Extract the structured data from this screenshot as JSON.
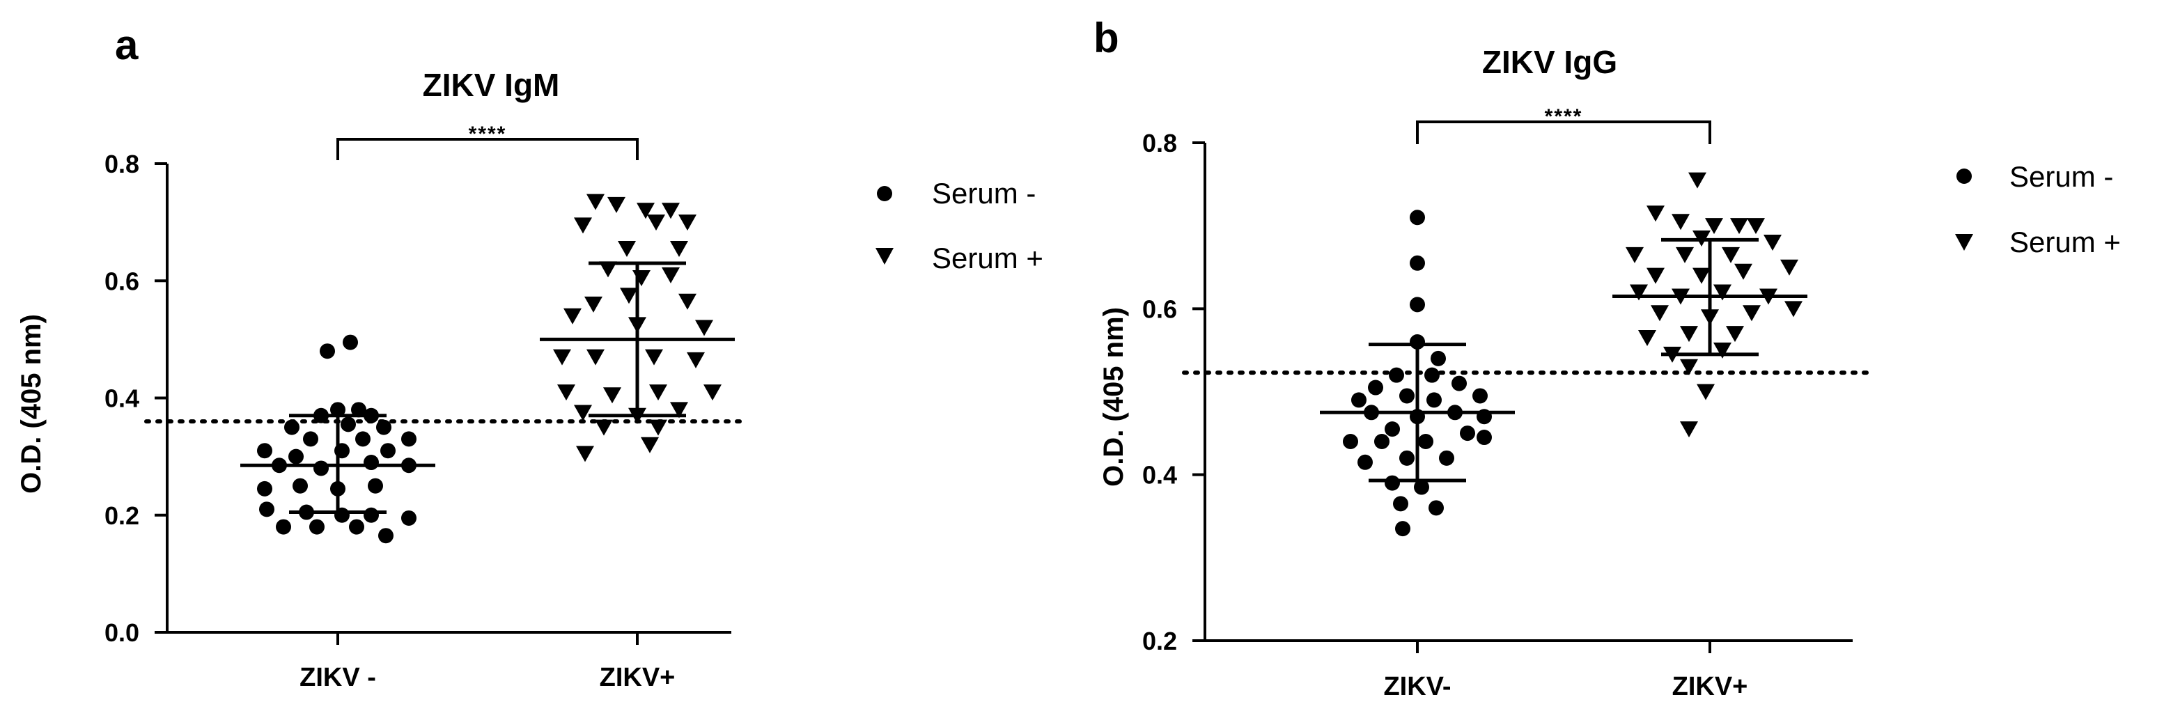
{
  "chart_data": [
    {
      "panel": "a",
      "type": "scatter",
      "title": "ZIKV IgM",
      "ylabel": "O.D. (405 nm)",
      "xlabel": "",
      "categories": [
        "ZIKV -",
        "ZIKV+"
      ],
      "ylim": [
        0.0,
        0.8
      ],
      "yticks": [
        "0.0",
        "0.2",
        "0.4",
        "0.6",
        "0.8"
      ],
      "cutoff": 0.36,
      "significance": "****",
      "legend": {
        "position": "right",
        "entries": [
          "Serum -",
          "Serum +"
        ]
      },
      "series": [
        {
          "name": "Serum -",
          "marker": "circle",
          "category": "ZIKV -",
          "mean": 0.285,
          "sd_low": 0.205,
          "sd_high": 0.37,
          "points": [
            {
              "dx": -0.05,
              "y": 0.48
            },
            {
              "dx": 0.06,
              "y": 0.495
            },
            {
              "dx": 0.0,
              "y": 0.38
            },
            {
              "dx": -0.08,
              "y": 0.37
            },
            {
              "dx": 0.1,
              "y": 0.38
            },
            {
              "dx": 0.16,
              "y": 0.37
            },
            {
              "dx": -0.22,
              "y": 0.35
            },
            {
              "dx": 0.05,
              "y": 0.355
            },
            {
              "dx": 0.22,
              "y": 0.35
            },
            {
              "dx": -0.13,
              "y": 0.33
            },
            {
              "dx": 0.12,
              "y": 0.33
            },
            {
              "dx": 0.34,
              "y": 0.33
            },
            {
              "dx": -0.35,
              "y": 0.31
            },
            {
              "dx": -0.2,
              "y": 0.3
            },
            {
              "dx": 0.02,
              "y": 0.31
            },
            {
              "dx": 0.24,
              "y": 0.31
            },
            {
              "dx": -0.28,
              "y": 0.285
            },
            {
              "dx": -0.08,
              "y": 0.28
            },
            {
              "dx": 0.16,
              "y": 0.29
            },
            {
              "dx": 0.34,
              "y": 0.285
            },
            {
              "dx": -0.35,
              "y": 0.245
            },
            {
              "dx": -0.18,
              "y": 0.25
            },
            {
              "dx": 0.0,
              "y": 0.245
            },
            {
              "dx": 0.18,
              "y": 0.25
            },
            {
              "dx": -0.34,
              "y": 0.21
            },
            {
              "dx": -0.15,
              "y": 0.205
            },
            {
              "dx": 0.02,
              "y": 0.2
            },
            {
              "dx": 0.16,
              "y": 0.2
            },
            {
              "dx": 0.34,
              "y": 0.195
            },
            {
              "dx": -0.26,
              "y": 0.18
            },
            {
              "dx": -0.1,
              "y": 0.18
            },
            {
              "dx": 0.09,
              "y": 0.18
            },
            {
              "dx": 0.23,
              "y": 0.165
            }
          ]
        },
        {
          "name": "Serum +",
          "marker": "triangle-down",
          "category": "ZIKV+",
          "mean": 0.5,
          "sd_low": 0.37,
          "sd_high": 0.63,
          "points": [
            {
              "dx": -0.2,
              "y": 0.735
            },
            {
              "dx": -0.1,
              "y": 0.73
            },
            {
              "dx": 0.04,
              "y": 0.72
            },
            {
              "dx": 0.16,
              "y": 0.72
            },
            {
              "dx": -0.26,
              "y": 0.695
            },
            {
              "dx": 0.09,
              "y": 0.7
            },
            {
              "dx": 0.24,
              "y": 0.7
            },
            {
              "dx": -0.05,
              "y": 0.655
            },
            {
              "dx": 0.2,
              "y": 0.655
            },
            {
              "dx": -0.14,
              "y": 0.62
            },
            {
              "dx": 0.02,
              "y": 0.605
            },
            {
              "dx": 0.16,
              "y": 0.61
            },
            {
              "dx": -0.21,
              "y": 0.56
            },
            {
              "dx": -0.04,
              "y": 0.575
            },
            {
              "dx": 0.24,
              "y": 0.565
            },
            {
              "dx": -0.31,
              "y": 0.54
            },
            {
              "dx": 0.0,
              "y": 0.525
            },
            {
              "dx": 0.32,
              "y": 0.52
            },
            {
              "dx": -0.36,
              "y": 0.47
            },
            {
              "dx": -0.2,
              "y": 0.47
            },
            {
              "dx": 0.08,
              "y": 0.47
            },
            {
              "dx": 0.28,
              "y": 0.465
            },
            {
              "dx": -0.34,
              "y": 0.41
            },
            {
              "dx": -0.12,
              "y": 0.405
            },
            {
              "dx": 0.1,
              "y": 0.41
            },
            {
              "dx": 0.36,
              "y": 0.41
            },
            {
              "dx": -0.26,
              "y": 0.375
            },
            {
              "dx": 0.0,
              "y": 0.37
            },
            {
              "dx": 0.2,
              "y": 0.38
            },
            {
              "dx": -0.16,
              "y": 0.35
            },
            {
              "dx": 0.1,
              "y": 0.35
            },
            {
              "dx": -0.25,
              "y": 0.305
            },
            {
              "dx": 0.06,
              "y": 0.32
            }
          ]
        }
      ]
    },
    {
      "panel": "b",
      "type": "scatter",
      "title": "ZIKV IgG",
      "ylabel": "O.D. (405 nm)",
      "xlabel": "",
      "categories": [
        "ZIKV-",
        "ZIKV+"
      ],
      "ylim": [
        0.2,
        0.8
      ],
      "yticks": [
        "0.2",
        "0.4",
        "0.6",
        "0.8"
      ],
      "cutoff": 0.523,
      "significance": "****",
      "legend": {
        "position": "right",
        "entries": [
          "Serum -",
          "Serum +"
        ]
      },
      "series": [
        {
          "name": "Serum -",
          "marker": "circle",
          "category": "ZIKV-",
          "mean": 0.475,
          "sd_low": 0.393,
          "sd_high": 0.557,
          "points": [
            {
              "dx": 0.0,
              "y": 0.71
            },
            {
              "dx": 0.0,
              "y": 0.655
            },
            {
              "dx": 0.0,
              "y": 0.605
            },
            {
              "dx": 0.0,
              "y": 0.56
            },
            {
              "dx": 0.1,
              "y": 0.54
            },
            {
              "dx": -0.1,
              "y": 0.52
            },
            {
              "dx": 0.07,
              "y": 0.52
            },
            {
              "dx": -0.2,
              "y": 0.505
            },
            {
              "dx": 0.2,
              "y": 0.51
            },
            {
              "dx": -0.28,
              "y": 0.49
            },
            {
              "dx": -0.05,
              "y": 0.495
            },
            {
              "dx": 0.08,
              "y": 0.49
            },
            {
              "dx": 0.3,
              "y": 0.495
            },
            {
              "dx": -0.22,
              "y": 0.475
            },
            {
              "dx": 0.0,
              "y": 0.47
            },
            {
              "dx": 0.18,
              "y": 0.475
            },
            {
              "dx": 0.32,
              "y": 0.47
            },
            {
              "dx": -0.12,
              "y": 0.455
            },
            {
              "dx": 0.24,
              "y": 0.45
            },
            {
              "dx": -0.32,
              "y": 0.44
            },
            {
              "dx": -0.17,
              "y": 0.44
            },
            {
              "dx": 0.04,
              "y": 0.44
            },
            {
              "dx": 0.32,
              "y": 0.445
            },
            {
              "dx": -0.25,
              "y": 0.415
            },
            {
              "dx": -0.05,
              "y": 0.42
            },
            {
              "dx": 0.14,
              "y": 0.42
            },
            {
              "dx": -0.12,
              "y": 0.39
            },
            {
              "dx": 0.02,
              "y": 0.385
            },
            {
              "dx": -0.08,
              "y": 0.365
            },
            {
              "dx": 0.09,
              "y": 0.36
            },
            {
              "dx": -0.07,
              "y": 0.335
            }
          ]
        },
        {
          "name": "Serum +",
          "marker": "triangle-down",
          "category": "ZIKV+",
          "mean": 0.615,
          "sd_low": 0.545,
          "sd_high": 0.683,
          "points": [
            {
              "dx": -0.06,
              "y": 0.755
            },
            {
              "dx": -0.26,
              "y": 0.715
            },
            {
              "dx": -0.14,
              "y": 0.705
            },
            {
              "dx": 0.02,
              "y": 0.7
            },
            {
              "dx": 0.14,
              "y": 0.7
            },
            {
              "dx": -0.04,
              "y": 0.685
            },
            {
              "dx": 0.22,
              "y": 0.7
            },
            {
              "dx": -0.36,
              "y": 0.665
            },
            {
              "dx": -0.12,
              "y": 0.665
            },
            {
              "dx": 0.1,
              "y": 0.665
            },
            {
              "dx": 0.3,
              "y": 0.68
            },
            {
              "dx": -0.26,
              "y": 0.64
            },
            {
              "dx": -0.04,
              "y": 0.64
            },
            {
              "dx": 0.16,
              "y": 0.645
            },
            {
              "dx": 0.38,
              "y": 0.65
            },
            {
              "dx": -0.34,
              "y": 0.62
            },
            {
              "dx": -0.14,
              "y": 0.615
            },
            {
              "dx": 0.06,
              "y": 0.62
            },
            {
              "dx": 0.28,
              "y": 0.615
            },
            {
              "dx": -0.24,
              "y": 0.595
            },
            {
              "dx": 0.0,
              "y": 0.59
            },
            {
              "dx": 0.2,
              "y": 0.595
            },
            {
              "dx": 0.4,
              "y": 0.6
            },
            {
              "dx": -0.3,
              "y": 0.565
            },
            {
              "dx": -0.1,
              "y": 0.57
            },
            {
              "dx": 0.12,
              "y": 0.57
            },
            {
              "dx": -0.18,
              "y": 0.545
            },
            {
              "dx": 0.06,
              "y": 0.55
            },
            {
              "dx": -0.1,
              "y": 0.53
            },
            {
              "dx": -0.02,
              "y": 0.5
            },
            {
              "dx": -0.1,
              "y": 0.455
            }
          ]
        }
      ]
    }
  ]
}
